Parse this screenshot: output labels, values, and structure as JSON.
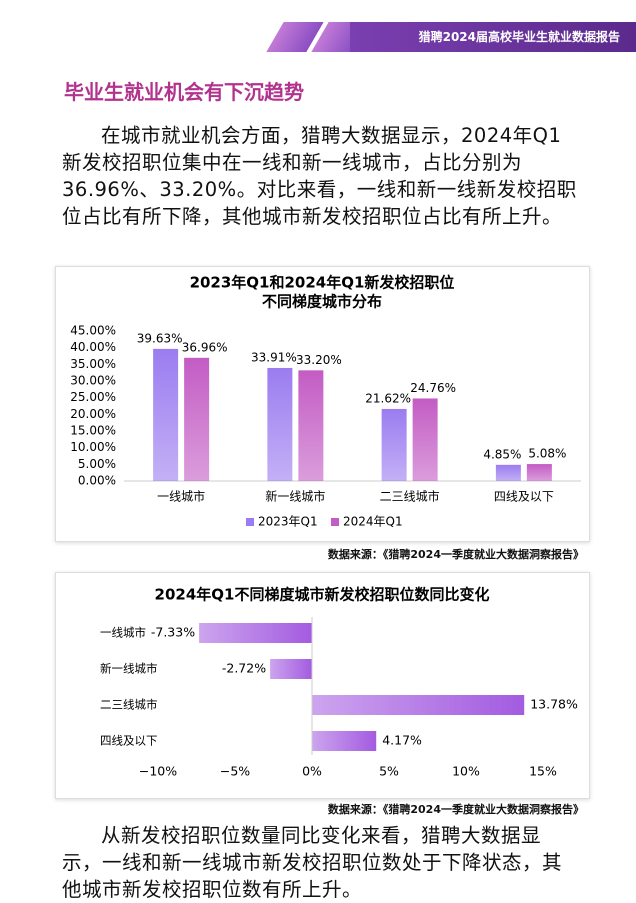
{
  "header": {
    "title": "猎聘2024届高校毕业生就业数据报告"
  },
  "section_title": "毕业生就业机会有下沉趋势",
  "paragraphs": [
    "在城市就业机会方面，猎聘大数据显示，2024年Q1新发校招职位集中在一线和新一线城市，占比分别为36.96%、33.20%。对比来看，一线和新一线新发校招职位占比有所下降，其他城市新发校招职位占比有所上升。",
    "从新发校招职位数量同比变化来看，猎聘大数据显示，一线和新一线城市新发校招职位数处于下降状态，其他城市新发校招职位数有所上升。"
  ],
  "sources": [
    "数据来源：《猎聘2024一季度就业大数据洞察报告》",
    "数据来源：《猎聘2024一季度就业大数据洞察报告》"
  ],
  "chart_data": [
    {
      "type": "bar",
      "title": [
        "2023年Q1和2024年Q1新发校招职位",
        "不同梯度城市分布"
      ],
      "categories": [
        "一线城市",
        "新一线城市",
        "二三线城市",
        "四线及以下"
      ],
      "series": [
        {
          "name": "2023年Q1",
          "color": "#9b7cf0",
          "values": [
            39.63,
            33.91,
            21.62,
            4.85
          ],
          "value_labels": [
            "39.63%",
            "33.91%",
            "21.62%",
            "4.85%"
          ]
        },
        {
          "name": "2024年Q1",
          "color": "#c35cc4",
          "values": [
            36.96,
            33.2,
            24.76,
            5.08
          ],
          "value_labels": [
            "36.96%",
            "33.20%",
            "24.76%",
            "5.08%"
          ]
        }
      ],
      "ylim": [
        0,
        45
      ],
      "yticks": [
        {
          "value": 0,
          "label": "0.00%"
        },
        {
          "value": 5,
          "label": "5.00%"
        },
        {
          "value": 10,
          "label": "10.00%"
        },
        {
          "value": 15,
          "label": "15.00%"
        },
        {
          "value": 20,
          "label": "20.00%"
        },
        {
          "value": 25,
          "label": "25.00%"
        },
        {
          "value": 30,
          "label": "30.00%"
        },
        {
          "value": 35,
          "label": "35.00%"
        },
        {
          "value": 40,
          "label": "40.00%"
        },
        {
          "value": 45,
          "label": "45.00%"
        }
      ],
      "legend": "bottom"
    },
    {
      "type": "hbar",
      "title": "2024年Q1不同梯度城市新发校招职位数同比变化",
      "categories": [
        "一线城市",
        "新一线城市",
        "二三线城市",
        "四线及以下"
      ],
      "values": [
        -7.33,
        -2.72,
        13.78,
        4.17
      ],
      "value_labels": [
        "-7.33%",
        "-2.72%",
        "13.78%",
        "4.17%"
      ],
      "color": "#a35be0",
      "xlim": [
        -10,
        15
      ],
      "xticks": [
        {
          "value": -10,
          "label": "−10%"
        },
        {
          "value": -5,
          "label": "−5%"
        },
        {
          "value": 0,
          "label": "0%"
        },
        {
          "value": 5,
          "label": "5%"
        },
        {
          "value": 10,
          "label": "10%"
        },
        {
          "value": 15,
          "label": "15%"
        }
      ]
    }
  ]
}
